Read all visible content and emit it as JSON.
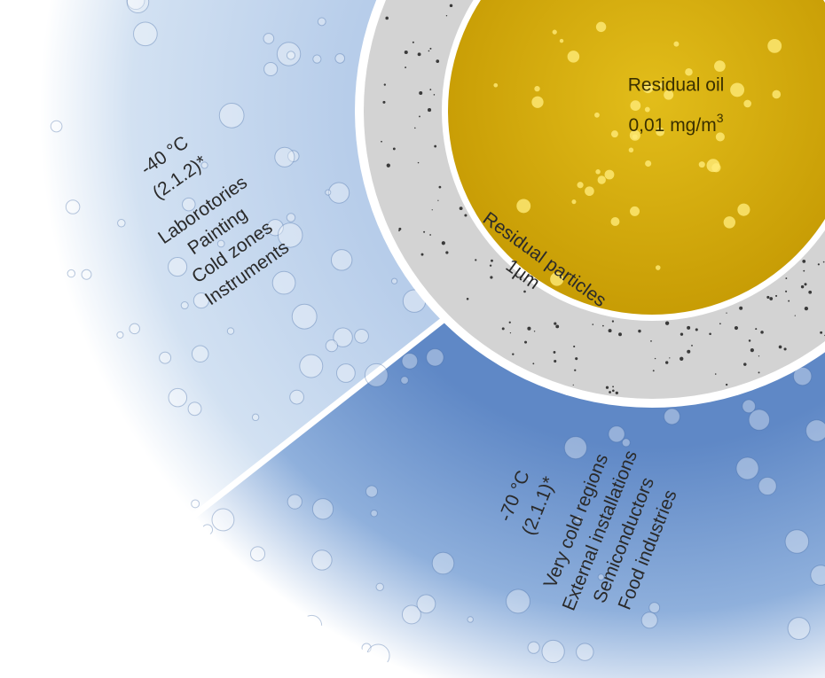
{
  "sectors": [
    {
      "temperature": "-40 °C",
      "class": "(2.1.2)*",
      "applications": [
        "Laborotories",
        "Painting",
        "Cold zones",
        "Instruments"
      ]
    },
    {
      "temperature": "-70 °C",
      "class": "(2.1.1)*",
      "applications": [
        "Very cold regions",
        "External installations",
        "Semiconductors",
        "Food industries"
      ]
    }
  ],
  "ring": {
    "label": "Residual particles",
    "value": "1µm"
  },
  "core": {
    "label": "Residual oil",
    "value": "0,01 mg/m",
    "superscript": "3"
  }
}
